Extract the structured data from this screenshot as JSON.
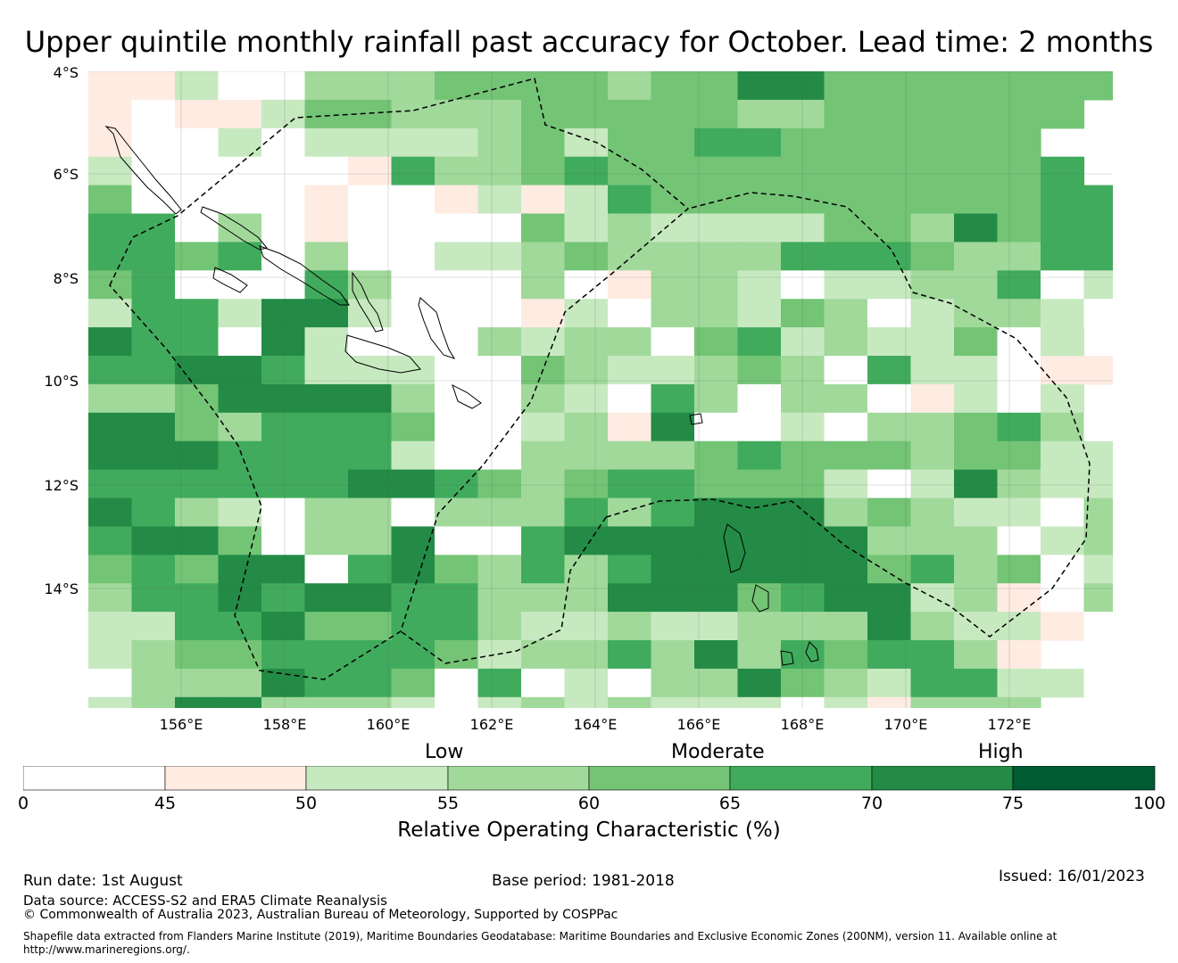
{
  "title": "Upper quintile monthly rainfall past accuracy for October. Lead time: 2 months",
  "map": {
    "lat_labels": [
      "4°S",
      "6°S",
      "8°S",
      "10°S",
      "12°S",
      "14°S"
    ],
    "lon_labels": [
      "156°E",
      "158°E",
      "160°E",
      "162°E",
      "164°E",
      "166°E",
      "168°E",
      "170°E",
      "172°E"
    ],
    "grid_rows": [
      "112..3334444344664444444",
      "1.112443334444433444444",
      "1..2.22223424455444444",
      "2.....15334544444444445",
      "4....1001212544444444455",
      "55.3.1....42322224436455",
      "5545.3..2234333355543355",
      "45...53...3.1332.22335.2",
      "2552662...12.33243.2332.",
      "655.62...3233.4523224.2",
      "55665222..4322343.522.11",
      "33466663..32.53033.12.2",
      "66435554.02316..2.33453.",
      "66655552..33334544434422",
      "555555665434554442.26322",
      "6532.33.33353566634322.3",
      "5664.336..56666666333.23",
      "45466.5643535666664534.2",
      "3556566553336664566231.3",
      "22556445532232233363221.",
      "2344555542335363545531",
      ".3336554.5.2.3364325522.",
      "23663332.2323222.21333",
      "2333666633.323..2212211."
    ],
    "palette": {
      "band0": "#ffffff",
      "band1": "#feebe2",
      "band2": "#c7e9c0",
      "band3": "#a1d99b",
      "band4": "#74c476",
      "band5": "#41ab5d",
      "band6": "#238b45",
      "band7": "#005a32"
    }
  },
  "colorbar": {
    "ticks": [
      "0",
      "45",
      "50",
      "55",
      "60",
      "65",
      "70",
      "75",
      "100"
    ],
    "low_label": "Low",
    "moderate_label": "Moderate",
    "high_label": "High",
    "axis_label": "Relative Operating Characteristic (%)"
  },
  "footer": {
    "run_date": "Run date: 1st August",
    "base_period": "Base period: 1981-2018",
    "issued": "Issued: 16/01/2023",
    "data_source": "Data source: ACCESS-S2 and ERA5 Climate Reanalysis",
    "copyright": "© Commonwealth of Australia 2023, Australian Bureau of Meteorology, Supported by COSPPac",
    "shapefile_line1": "Shapefile data extracted from Flanders Marine Institute (2019), Maritime Boundaries Geodatabase: Maritime Boundaries and Exclusive Economic Zones (200NM), version 11. Available online at",
    "shapefile_line2": "http://www.marineregions.org/."
  }
}
